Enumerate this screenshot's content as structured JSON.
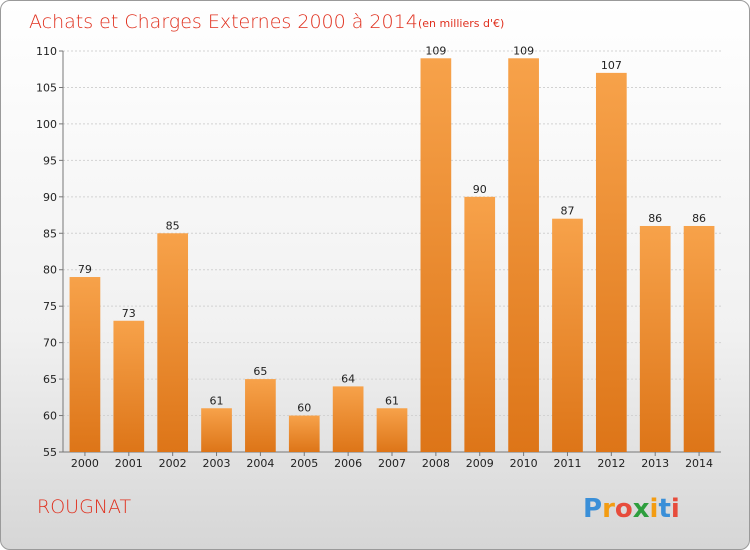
{
  "chart_data": {
    "type": "bar",
    "title": "Achats et Charges Externes 2000 à 2014",
    "subtitle": "(en milliers d'€)",
    "xlabel": "",
    "ylabel": "",
    "categories": [
      "2000",
      "2001",
      "2002",
      "2003",
      "2004",
      "2005",
      "2006",
      "2007",
      "2008",
      "2009",
      "2010",
      "2011",
      "2012",
      "2013",
      "2014"
    ],
    "values": [
      79,
      73,
      85,
      61,
      65,
      60,
      64,
      61,
      109,
      90,
      109,
      87,
      107,
      86,
      86
    ],
    "ylim": [
      55,
      110
    ],
    "yticks": [
      55,
      60,
      65,
      70,
      75,
      80,
      85,
      90,
      95,
      100,
      105,
      110
    ],
    "grid": true,
    "bar_color": "#f0892a"
  },
  "footer": {
    "city": "ROUGNAT",
    "logo_letters": [
      "P",
      "r",
      "o",
      "x",
      "i",
      "t",
      "i"
    ],
    "logo_colors": [
      "#3a8fd8",
      "#f39c12",
      "#e74c3c",
      "#2e9e3e",
      "#f39c12",
      "#3a8fd8",
      "#e74c3c"
    ]
  }
}
